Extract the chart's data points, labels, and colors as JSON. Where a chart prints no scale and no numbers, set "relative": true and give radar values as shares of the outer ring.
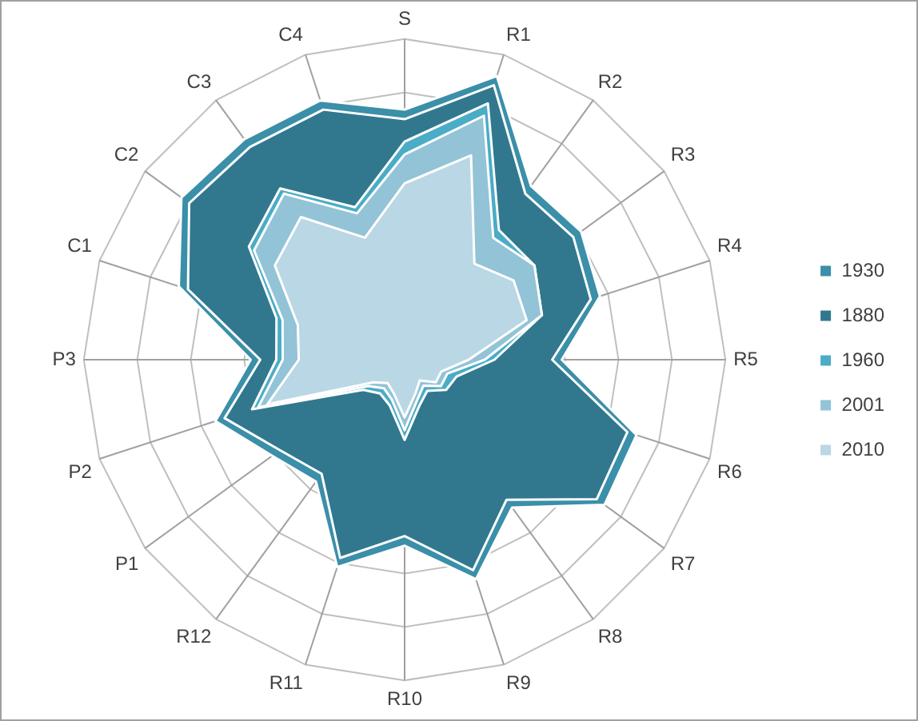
{
  "chart_data": {
    "type": "radar",
    "relative": true,
    "legend": "right",
    "grid": true,
    "categories": [
      "S",
      "R1",
      "R2",
      "R3",
      "R4",
      "R5",
      "R6",
      "R7",
      "R8",
      "R9",
      "R10",
      "R11",
      "R12",
      "P1",
      "P2",
      "P3",
      "C1",
      "C2",
      "C3",
      "C4"
    ],
    "series": [
      {
        "name": "1930",
        "color": "#3b8fa8",
        "values": [
          0.78,
          0.93,
          0.67,
          0.68,
          0.64,
          0.49,
          0.76,
          0.77,
          0.57,
          0.72,
          0.58,
          0.68,
          0.47,
          0.51,
          0.62,
          0.48,
          0.74,
          0.86,
          0.85,
          0.85
        ]
      },
      {
        "name": "1880",
        "color": "#31788f",
        "values": [
          0.75,
          0.9,
          0.64,
          0.65,
          0.61,
          0.46,
          0.73,
          0.74,
          0.54,
          0.69,
          0.55,
          0.65,
          0.44,
          0.48,
          0.59,
          0.45,
          0.71,
          0.83,
          0.82,
          0.82
        ]
      },
      {
        "name": "1960",
        "color": "#4bacc6",
        "values": [
          0.68,
          0.84,
          0.5,
          0.5,
          0.45,
          0.28,
          0.17,
          0.16,
          0.12,
          0.15,
          0.25,
          0.15,
          0.13,
          0.16,
          0.5,
          0.4,
          0.42,
          0.6,
          0.66,
          0.5
        ]
      },
      {
        "name": "2001",
        "color": "#93c3d6",
        "values": [
          0.64,
          0.8,
          0.47,
          0.5,
          0.45,
          0.25,
          0.14,
          0.14,
          0.1,
          0.13,
          0.22,
          0.13,
          0.11,
          0.14,
          0.48,
          0.38,
          0.4,
          0.58,
          0.64,
          0.48
        ]
      },
      {
        "name": "2010",
        "color": "#b9d7e4",
        "values": [
          0.55,
          0.67,
          0.37,
          0.42,
          0.4,
          0.2,
          0.12,
          0.12,
          0.08,
          0.11,
          0.18,
          0.11,
          0.09,
          0.12,
          0.45,
          0.33,
          0.35,
          0.5,
          0.55,
          0.4
        ]
      }
    ]
  }
}
